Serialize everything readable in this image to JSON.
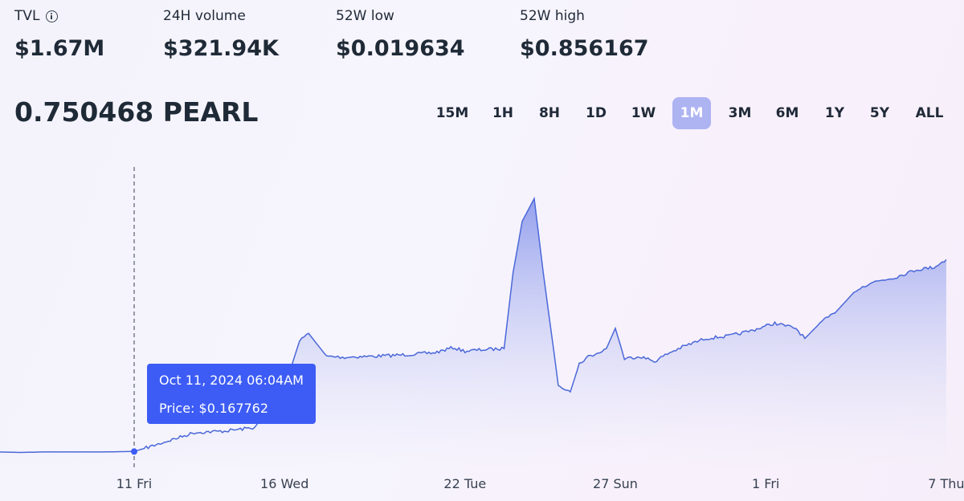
{
  "stats": {
    "tvl_label": "TVL",
    "tvl_value": "$1.67M",
    "volume_label": "24H volume",
    "volume_value": "$321.94K",
    "low_label": "52W low",
    "low_value": "$0.019634",
    "high_label": "52W high",
    "high_value": "$0.856167"
  },
  "price_title": "0.750468 PEARL",
  "ranges": [
    "15M",
    "1H",
    "8H",
    "1D",
    "1W",
    "1M",
    "3M",
    "6M",
    "1Y",
    "5Y",
    "ALL"
  ],
  "active_range": "1M",
  "tooltip": {
    "date": "Oct 11, 2024 06:04AM",
    "price": "Price: $0.167762"
  },
  "colors": {
    "line": "#4a68d8",
    "fill_top": "#8f9cec",
    "fill_bottom": "#f4f3fb",
    "tooltip": "#3d5cf5",
    "active_range": "#aeb3f2"
  },
  "chart_data": {
    "type": "area",
    "title": "",
    "xlabel": "",
    "ylabel": "",
    "x_ticks": [
      "11 Fri",
      "16 Wed",
      "22 Tue",
      "27 Sun",
      "1 Fri",
      "7 Thu"
    ],
    "x_tick_days": [
      0,
      5,
      11,
      16,
      21,
      27
    ],
    "ylim": [
      0.14,
      0.85
    ],
    "grid": false,
    "legend": "none",
    "highlight": {
      "day": 0.0,
      "price": 0.167762
    },
    "series": [
      {
        "x_days": [
          -4.5,
          -3.8,
          -3.0,
          -2.0,
          -1.0,
          0.0,
          0.4,
          1.2,
          2.0,
          3.0,
          4.0,
          4.6,
          5.2,
          5.5,
          5.8,
          6.4,
          6.7,
          7.0,
          7.3,
          8.0,
          9.0,
          10.0,
          10.6,
          11.0,
          11.6,
          12.3,
          12.6,
          12.9,
          13.3,
          13.6,
          14.1,
          14.5,
          14.8,
          15.1,
          15.4,
          15.7,
          16.0,
          16.3,
          16.8,
          17.3,
          17.8,
          18.3,
          19.0,
          19.8,
          20.5,
          21.3,
          22.0,
          22.3,
          22.8,
          23.3,
          24.0,
          24.5,
          25.3,
          26.0,
          26.6,
          27.0
        ],
        "values": [
          0.167,
          0.166,
          0.167,
          0.167,
          0.167,
          0.168,
          0.175,
          0.19,
          0.205,
          0.208,
          0.215,
          0.26,
          0.33,
          0.385,
          0.4,
          0.355,
          0.354,
          0.353,
          0.354,
          0.355,
          0.358,
          0.362,
          0.372,
          0.365,
          0.368,
          0.37,
          0.52,
          0.62,
          0.665,
          0.52,
          0.3,
          0.285,
          0.34,
          0.355,
          0.36,
          0.37,
          0.41,
          0.35,
          0.355,
          0.345,
          0.362,
          0.375,
          0.39,
          0.395,
          0.405,
          0.42,
          0.41,
          0.39,
          0.42,
          0.44,
          0.485,
          0.5,
          0.51,
          0.525,
          0.53,
          0.545
        ]
      }
    ]
  }
}
